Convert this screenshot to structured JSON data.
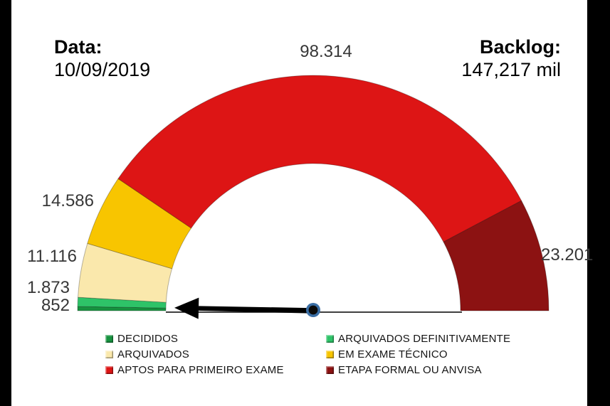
{
  "header": {
    "date_label": "Data:",
    "date_value": "10/09/2019",
    "backlog_label": "Backlog:",
    "backlog_value": "147,217 mil"
  },
  "chart_data": {
    "type": "pie",
    "variant": "half-doughnut gauge with needle",
    "title": "Backlog: 147,217 mil",
    "date": "10/09/2019",
    "legend_position": "bottom",
    "start_deg_from_left": 0,
    "end_deg_from_left": 180,
    "segments": [
      {
        "label": "DECIDIDOS",
        "value": 852,
        "display": "852",
        "color": "#17923F"
      },
      {
        "label": "ARQUIVADOS DEFINITIVAMENTE",
        "value": 1873,
        "display": "1.873",
        "color": "#2EC368"
      },
      {
        "label": "ARQUIVADOS",
        "value": 11116,
        "display": "11.116",
        "color": "#FAE8AC"
      },
      {
        "label": "EM EXAME TÉCNICO",
        "value": 14586,
        "display": "14.586",
        "color": "#F8C500"
      },
      {
        "label": "APTOS PARA PRIMEIRO EXAME",
        "value": 98314,
        "display": "98.314",
        "color": "#DD1515"
      },
      {
        "label": "ETAPA FORMAL OU ANVISA",
        "value": 23201,
        "display": "23.201",
        "color": "#8C1212"
      }
    ],
    "needle": {
      "angle_deg_from_left": 1.2,
      "color": "#000000",
      "pivot_ring_color": "#3A6EA5",
      "pivot_core_color": "#0b0b0b",
      "baseline_color": "#000000"
    }
  }
}
